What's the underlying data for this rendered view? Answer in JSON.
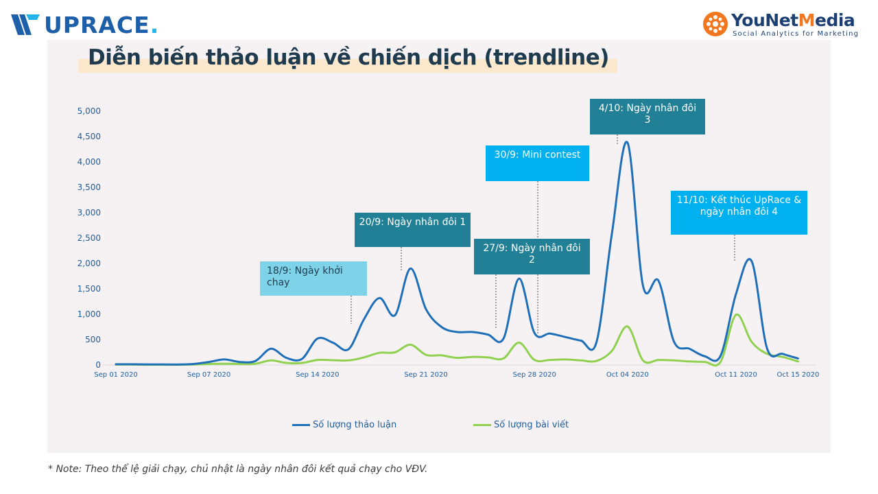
{
  "header": {
    "left_logo_text": "UPRACE",
    "left_logo_dot": ".",
    "right_logo_text_a": "YouNet",
    "right_logo_text_b": "M",
    "right_logo_text_c": "edia",
    "right_logo_tagline": "Social Analytics for Marketing"
  },
  "title": "Diễn biến thảo luận về chiến dịch (trendline)",
  "note": "* Note: Theo thể lệ giải chạy, chủ nhật là ngày nhân đôi kết quả chạy cho VĐV.",
  "colors": {
    "series_discussion": "#1e6fb8",
    "series_posts": "#8fd14f",
    "callout_light": "#7fd3e8",
    "callout_teal": "#217f96",
    "callout_cyan": "#00b0ef",
    "axis_text": "#1e5d9e"
  },
  "chart_data": {
    "type": "line",
    "title": "Diễn biến thảo luận về chiến dịch (trendline)",
    "xlabel": "",
    "ylabel": "",
    "ylim": [
      0,
      5000
    ],
    "y_ticks": [
      "0",
      "500",
      "1,000",
      "1,500",
      "2,000",
      "2,500",
      "3,000",
      "3,500",
      "4,000",
      "4,500",
      "5,000"
    ],
    "x_tick_labels": [
      {
        "day": 0,
        "label": "Sep 01 2020"
      },
      {
        "day": 6,
        "label": "Sep 07 2020"
      },
      {
        "day": 13,
        "label": "Sep 14 2020"
      },
      {
        "day": 20,
        "label": "Sep 21 2020"
      },
      {
        "day": 27,
        "label": "Sep 28 2020"
      },
      {
        "day": 33,
        "label": "Oct 04 2020"
      },
      {
        "day": 40,
        "label": "Oct 11 2020"
      },
      {
        "day": 44,
        "label": "Oct 15 2020"
      }
    ],
    "x_dates": [
      "Sep 01 2020",
      "Sep 02 2020",
      "Sep 03 2020",
      "Sep 04 2020",
      "Sep 05 2020",
      "Sep 06 2020",
      "Sep 07 2020",
      "Sep 08 2020",
      "Sep 09 2020",
      "Sep 10 2020",
      "Sep 11 2020",
      "Sep 12 2020",
      "Sep 13 2020",
      "Sep 14 2020",
      "Sep 15 2020",
      "Sep 16 2020",
      "Sep 17 2020",
      "Sep 18 2020",
      "Sep 19 2020",
      "Sep 20 2020",
      "Sep 21 2020",
      "Sep 22 2020",
      "Sep 23 2020",
      "Sep 24 2020",
      "Sep 25 2020",
      "Sep 26 2020",
      "Sep 27 2020",
      "Sep 28 2020",
      "Sep 29 2020",
      "Sep 30 2020",
      "Oct 01 2020",
      "Oct 02 2020",
      "Oct 03 2020",
      "Oct 04 2020",
      "Oct 05 2020",
      "Oct 06 2020",
      "Oct 07 2020",
      "Oct 08 2020",
      "Oct 09 2020",
      "Oct 10 2020",
      "Oct 11 2020",
      "Oct 12 2020",
      "Oct 13 2020",
      "Oct 14 2020",
      "Oct 15 2020"
    ],
    "series": [
      {
        "name": "Số lượng thảo luận",
        "values": [
          15,
          15,
          12,
          12,
          10,
          20,
          60,
          110,
          60,
          80,
          320,
          140,
          120,
          520,
          440,
          310,
          900,
          1320,
          980,
          1900,
          1100,
          750,
          650,
          650,
          600,
          520,
          1700,
          630,
          620,
          550,
          480,
          450,
          2600,
          4380,
          1560,
          1660,
          460,
          320,
          170,
          180,
          1400,
          2050,
          330,
          220,
          130
        ]
      },
      {
        "name": "Số lượng bài viết",
        "values": [
          8,
          8,
          6,
          6,
          5,
          10,
          20,
          25,
          20,
          25,
          90,
          40,
          40,
          100,
          95,
          90,
          150,
          240,
          250,
          400,
          200,
          190,
          140,
          160,
          150,
          130,
          440,
          100,
          100,
          110,
          90,
          80,
          280,
          760,
          90,
          100,
          90,
          70,
          60,
          60,
          990,
          460,
          220,
          160,
          70
        ]
      }
    ],
    "annotations": [
      {
        "text": "18/9: Ngày khởi chạy",
        "line": "18/9: Ngày khởi",
        "line2": "chay",
        "style": "light"
      },
      {
        "text": "20/9: Ngày nhân đôi 1",
        "line": "20/9: Ngày nhân đôi 1",
        "line2": "",
        "style": "teal"
      },
      {
        "text": "27/9: Ngày nhân đôi 2",
        "line": "27/9: Ngày nhân đôi",
        "line2": "2",
        "style": "teal"
      },
      {
        "text": "30/9: Mini contest",
        "line": "30/9: Mini contest",
        "line2": "",
        "style": "cyan"
      },
      {
        "text": "4/10: Ngày nhân đôi 3",
        "line": "4/10: Ngày nhân đôi",
        "line2": "3",
        "style": "teal"
      },
      {
        "text": "11/10: Kết thúc UpRace & ngày nhân đôi 4",
        "line": "11/10: Kết thúc UpRace &",
        "line2": "ngày nhân đôi 4",
        "style": "cyan"
      }
    ],
    "legend_position": "bottom",
    "grid": false
  }
}
